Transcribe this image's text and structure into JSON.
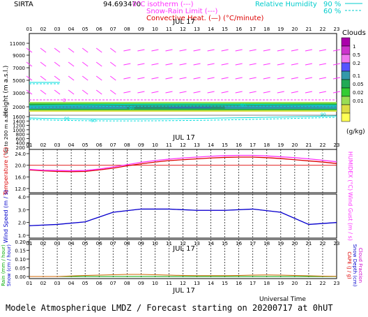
{
  "header": {
    "site": "SIRTA",
    "code": "94.693470",
    "legend_isotherm": "0°C isotherm (---)",
    "legend_snowrain": "Snow-Rain Limit (---)",
    "legend_convective": "Convective Heat. (—) (°C/minute)",
    "legend_rh": "Relative Humidity",
    "rh_90": "90 %",
    "rh_60": "60 %"
  },
  "hours": [
    "01",
    "02",
    "03",
    "04",
    "05",
    "06",
    "07",
    "08",
    "09",
    "10",
    "11",
    "12",
    "13",
    "14",
    "15",
    "16",
    "17",
    "18",
    "19",
    "20",
    "21",
    "22",
    "23"
  ],
  "date_label": "JUL 17",
  "footer": {
    "universal_time": "Universal Time",
    "model_line": "Modele Atmospherique LMDZ / Forecast starting on 20200717 at 0hUT"
  },
  "colors": {
    "magenta": "#ff33ff",
    "red": "#dd0000",
    "blue": "#0000cc",
    "cyan": "#00dddd",
    "green": "#00aa00",
    "brown": "#cc6600"
  },
  "chart_data": [
    {
      "type": "heatmap",
      "name": "clouds",
      "ylabel": "Height (m a.s.l.)",
      "ylabel_low": "Up to 200 m a.s.l.",
      "yticks_upper": [
        11000,
        9000,
        7000,
        5000,
        3000,
        2000
      ],
      "yticks_lower": [
        1600,
        1400,
        1200,
        1000,
        800,
        600,
        400,
        200
      ],
      "isotherm_label": "0",
      "rh_labels": [
        "90",
        "60"
      ],
      "colorbar": {
        "title": "Clouds",
        "unit": "(g/kg)",
        "labels": [
          "1",
          "0.5",
          "0.2",
          "0.1",
          "0.05",
          "0.02",
          "0.01"
        ],
        "colors": [
          "#aa00aa",
          "#cc33cc",
          "#ee77ee",
          "#5555ff",
          "#3399aa",
          "#22aa55",
          "#33cc33",
          "#99dd55",
          "#dddd44",
          "#ffff55"
        ]
      }
    },
    {
      "type": "line",
      "name": "temperature",
      "ylabel": "Temperature (°C)",
      "ylabel_right": "HUMIDEX (°C)",
      "yticks": [
        "24.0",
        "20.0",
        "16.0",
        "12.0"
      ],
      "ylim": [
        12,
        24
      ],
      "x": [
        1,
        2,
        3,
        4,
        5,
        6,
        7,
        8,
        9,
        10,
        11,
        12,
        13,
        14,
        15,
        16,
        17,
        18,
        19,
        20,
        21,
        22,
        23
      ],
      "series": [
        {
          "name": "Temperature",
          "values": [
            18.4,
            18.1,
            17.9,
            17.8,
            17.9,
            18.4,
            19.0,
            19.8,
            20.5,
            21.1,
            21.6,
            21.9,
            22.2,
            22.5,
            22.7,
            22.8,
            22.8,
            22.6,
            22.3,
            21.9,
            21.5,
            21.1,
            20.6
          ]
        },
        {
          "name": "HUMIDEX",
          "values": [
            18.6,
            18.3,
            18.2,
            18.1,
            18.2,
            18.7,
            19.4,
            20.2,
            21.0,
            21.6,
            22.1,
            22.5,
            22.8,
            23.1,
            23.3,
            23.4,
            23.4,
            23.2,
            22.9,
            22.6,
            22.2,
            21.7,
            21.2
          ]
        }
      ]
    },
    {
      "type": "line",
      "name": "wind",
      "ylabel": "Wind Speed (m / s)",
      "ylabel_right": "Wind Gust (m / s)",
      "yticks": [
        "4.0",
        "3.0",
        "2.0",
        "1.0"
      ],
      "ylim": [
        1,
        4
      ],
      "x": [
        1,
        3,
        5,
        7,
        9,
        11,
        13,
        15,
        17,
        19,
        21,
        23
      ],
      "series": [
        {
          "name": "Wind Speed",
          "values": [
            1.75,
            1.85,
            2.05,
            2.8,
            3.05,
            3.05,
            2.95,
            2.95,
            3.05,
            2.8,
            1.85,
            2.0
          ]
        }
      ]
    },
    {
      "type": "line",
      "name": "precipitation",
      "ylabel_left": [
        "Rain (mm / hour)",
        "Snow (cm / hour)"
      ],
      "ylabel_right": [
        "CAPE (J / g)",
        "Snow Depth (cm)",
        "Cloud Fraction"
      ],
      "yticks": [
        "0.20",
        "0.15",
        "0.10",
        "0.05",
        "0.00"
      ],
      "ylim": [
        0,
        0.2
      ],
      "x": [
        1,
        2,
        3,
        4,
        5,
        6,
        7,
        8,
        9,
        10,
        11,
        12,
        13,
        14,
        15,
        16,
        17,
        18,
        19,
        20,
        21,
        22,
        23
      ],
      "series": [
        {
          "name": "CAPE",
          "values": [
            0,
            0,
            0,
            0.003,
            0.006,
            0.008,
            0.01,
            0.012,
            0.012,
            0.01,
            0.008,
            0.006,
            0.005,
            0.005,
            0.005,
            0.006,
            0.008,
            0.009,
            0.008,
            0.006,
            0.004,
            0.002,
            0.001
          ]
        }
      ]
    }
  ]
}
